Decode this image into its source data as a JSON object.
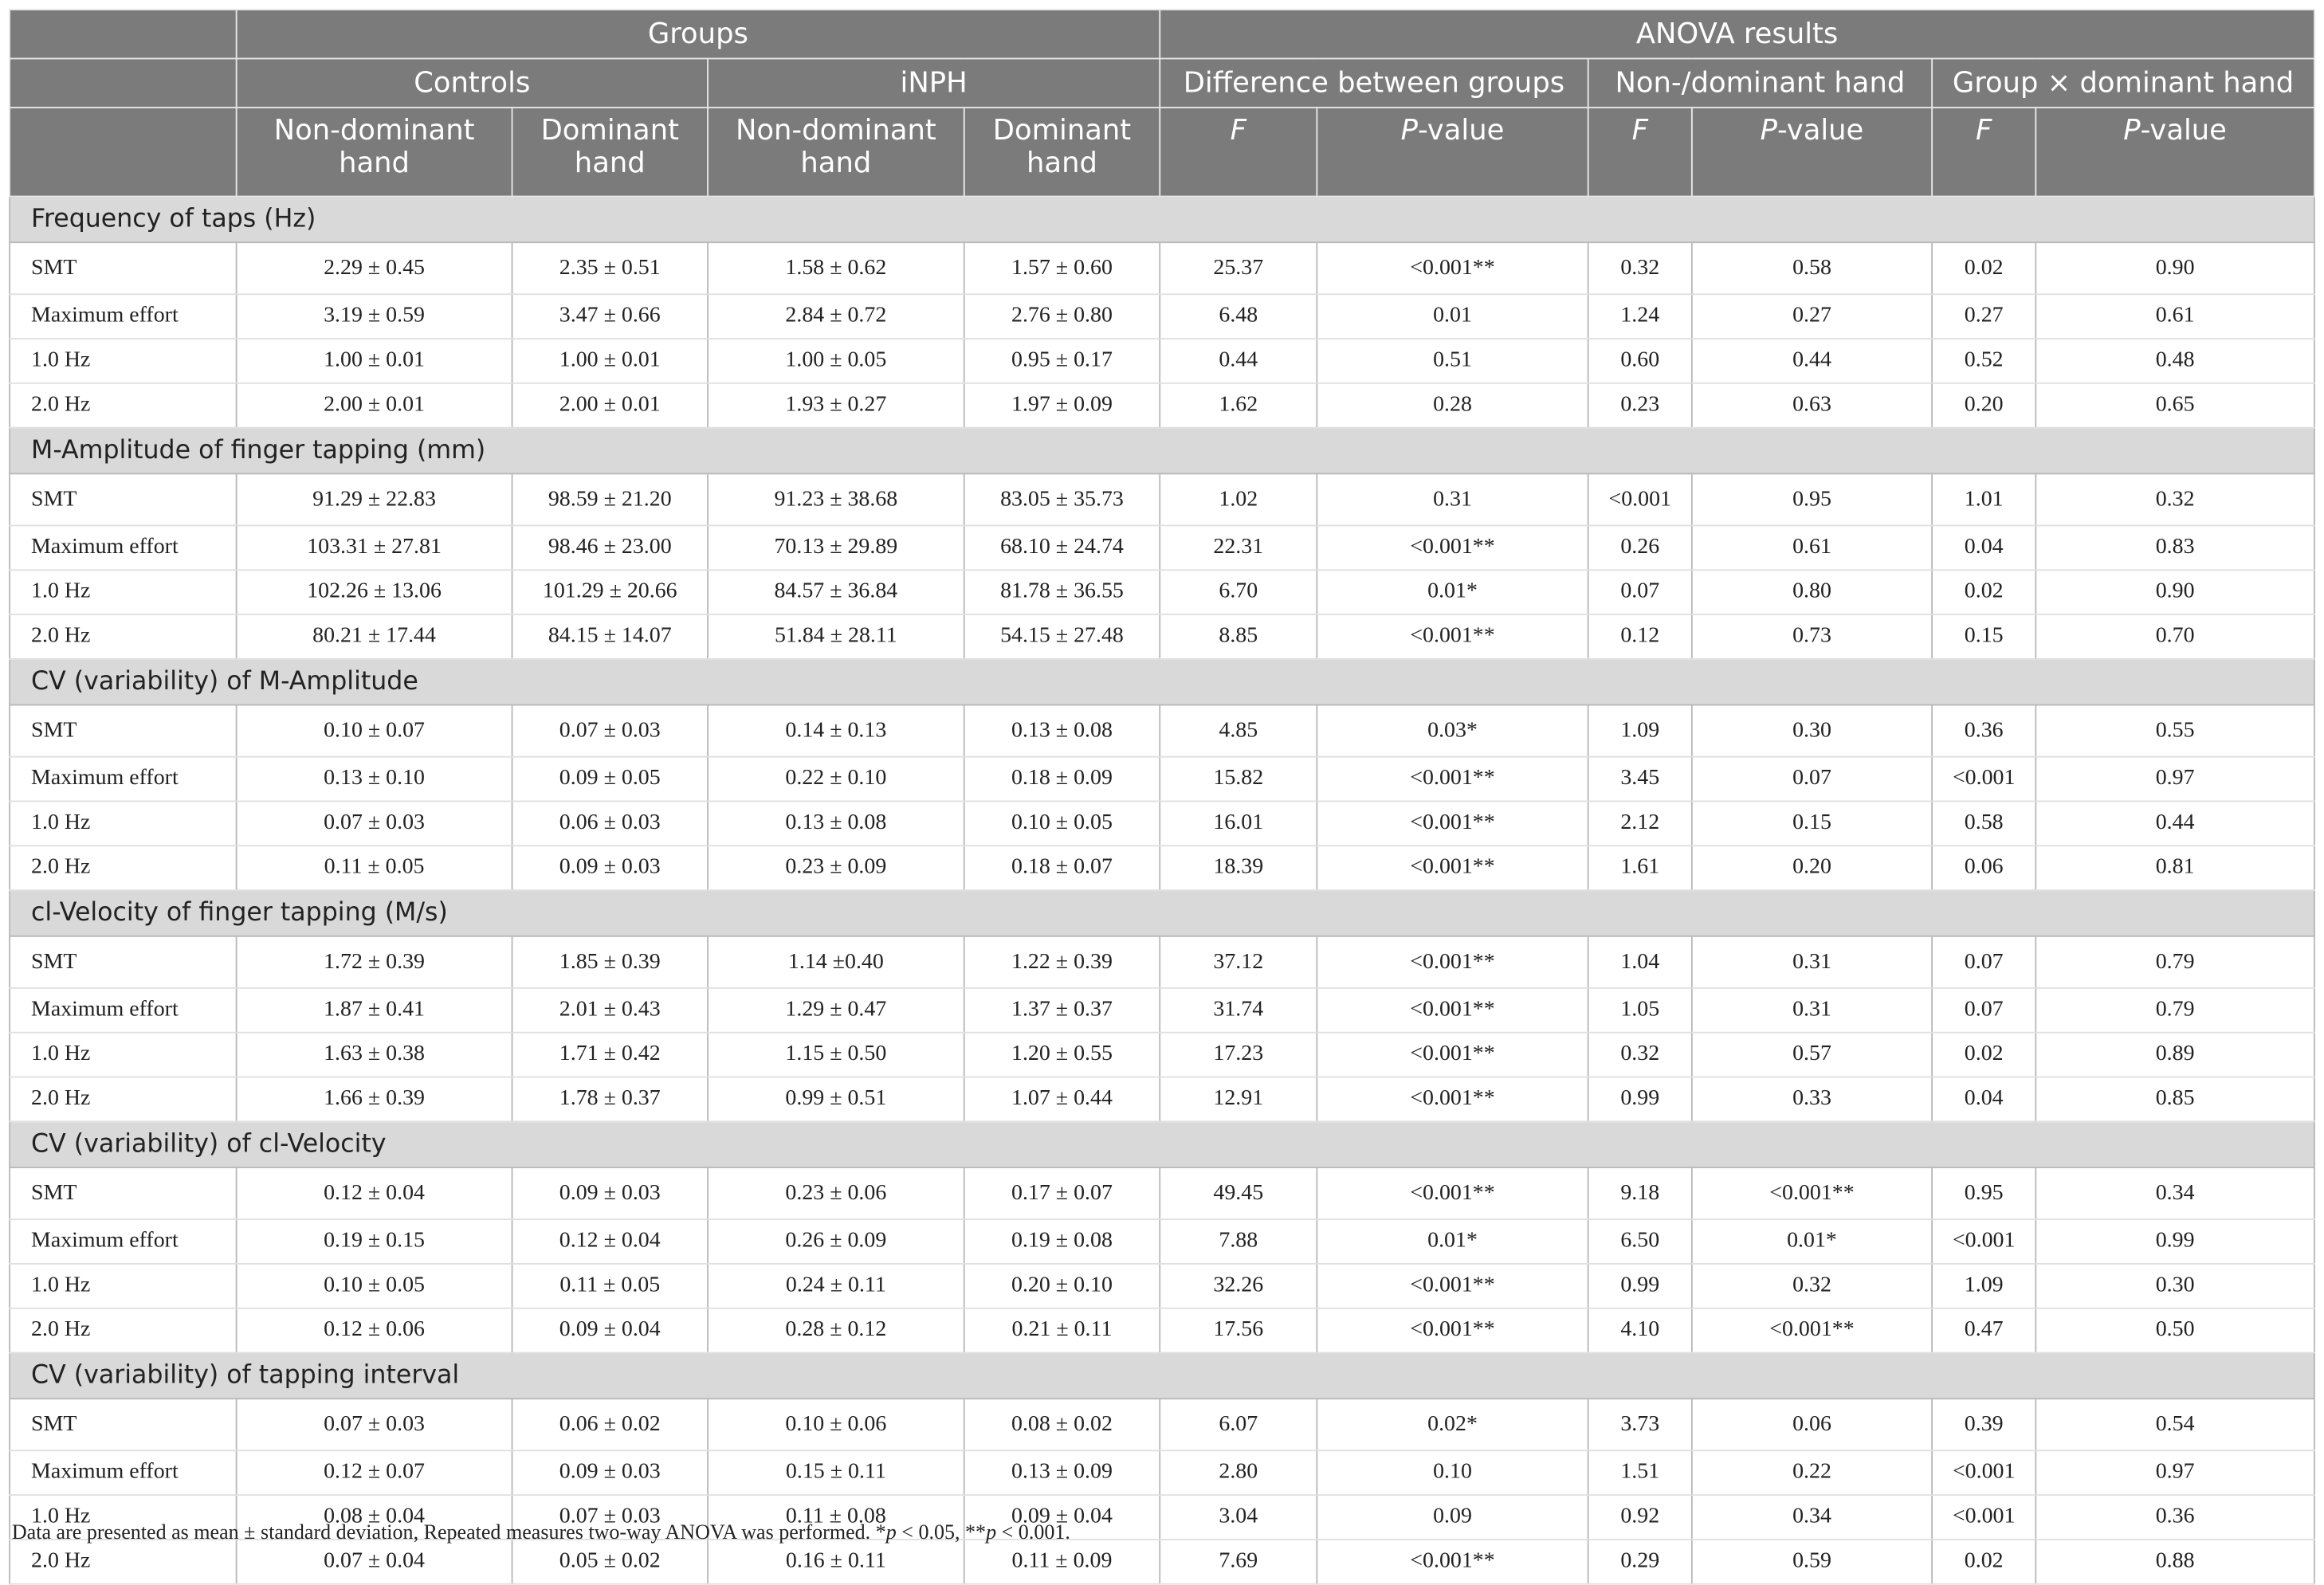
{
  "header": {
    "groups": "Groups",
    "anova": "ANOVA results",
    "controls": "Controls",
    "inph": "iNPH",
    "diff": "Difference between groups",
    "nondom_hand": "Non-/dominant hand",
    "interaction": "Group × dominant hand",
    "col_nondom": "Non-dominant hand",
    "col_dom": "Dominant hand",
    "col_F": "F",
    "col_P_italic": "P",
    "col_P_rest": "-value"
  },
  "sections": [
    {
      "title": "Frequency of taps (Hz)",
      "rows": [
        [
          "SMT",
          "2.29 ± 0.45",
          "2.35 ± 0.51",
          "1.58 ± 0.62",
          "1.57 ± 0.60",
          "25.37",
          "<0.001**",
          "0.32",
          "0.58",
          "0.02",
          "0.90"
        ],
        [
          "Maximum effort",
          "3.19 ± 0.59",
          "3.47 ± 0.66",
          "2.84 ± 0.72",
          "2.76 ± 0.80",
          "6.48",
          "0.01",
          "1.24",
          "0.27",
          "0.27",
          "0.61"
        ],
        [
          "1.0 Hz",
          "1.00 ± 0.01",
          "1.00 ± 0.01",
          "1.00 ± 0.05",
          "0.95 ± 0.17",
          "0.44",
          "0.51",
          "0.60",
          "0.44",
          "0.52",
          "0.48"
        ],
        [
          "2.0 Hz",
          "2.00 ± 0.01",
          "2.00 ± 0.01",
          "1.93 ± 0.27",
          "1.97 ± 0.09",
          "1.62",
          "0.28",
          "0.23",
          "0.63",
          "0.20",
          "0.65"
        ]
      ]
    },
    {
      "title": "M-Amplitude of finger tapping (mm)",
      "rows": [
        [
          "SMT",
          "91.29 ± 22.83",
          "98.59 ± 21.20",
          "91.23 ± 38.68",
          "83.05 ± 35.73",
          "1.02",
          "0.31",
          "<0.001",
          "0.95",
          "1.01",
          "0.32"
        ],
        [
          "Maximum effort",
          "103.31 ± 27.81",
          "98.46 ± 23.00",
          "70.13 ± 29.89",
          "68.10 ± 24.74",
          "22.31",
          "<0.001**",
          "0.26",
          "0.61",
          "0.04",
          "0.83"
        ],
        [
          "1.0 Hz",
          "102.26 ± 13.06",
          "101.29 ± 20.66",
          "84.57 ± 36.84",
          "81.78 ± 36.55",
          "6.70",
          "0.01*",
          "0.07",
          "0.80",
          "0.02",
          "0.90"
        ],
        [
          "2.0 Hz",
          "80.21 ± 17.44",
          "84.15 ± 14.07",
          "51.84 ± 28.11",
          "54.15 ± 27.48",
          "8.85",
          "<0.001**",
          "0.12",
          "0.73",
          "0.15",
          "0.70"
        ]
      ]
    },
    {
      "title": "CV (variability) of M-Amplitude",
      "rows": [
        [
          "SMT",
          "0.10 ± 0.07",
          "0.07 ± 0.03",
          "0.14 ± 0.13",
          "0.13 ± 0.08",
          "4.85",
          "0.03*",
          "1.09",
          "0.30",
          "0.36",
          "0.55"
        ],
        [
          "Maximum effort",
          "0.13 ± 0.10",
          "0.09 ± 0.05",
          "0.22 ± 0.10",
          "0.18 ± 0.09",
          "15.82",
          "<0.001**",
          "3.45",
          "0.07",
          "<0.001",
          "0.97"
        ],
        [
          "1.0 Hz",
          "0.07 ± 0.03",
          "0.06 ± 0.03",
          "0.13 ± 0.08",
          "0.10 ± 0.05",
          "16.01",
          "<0.001**",
          "2.12",
          "0.15",
          "0.58",
          "0.44"
        ],
        [
          "2.0 Hz",
          "0.11 ± 0.05",
          "0.09 ± 0.03",
          "0.23 ± 0.09",
          "0.18 ± 0.07",
          "18.39",
          "<0.001**",
          "1.61",
          "0.20",
          "0.06",
          "0.81"
        ]
      ]
    },
    {
      "title": "cl-Velocity of finger tapping (M/s)",
      "rows": [
        [
          "SMT",
          "1.72 ± 0.39",
          "1.85 ± 0.39",
          "1.14 ±0.40",
          "1.22 ± 0.39",
          "37.12",
          "<0.001**",
          "1.04",
          "0.31",
          "0.07",
          "0.79"
        ],
        [
          "Maximum effort",
          "1.87 ± 0.41",
          "2.01 ± 0.43",
          "1.29 ± 0.47",
          "1.37 ± 0.37",
          "31.74",
          "<0.001**",
          "1.05",
          "0.31",
          "0.07",
          "0.79"
        ],
        [
          "1.0 Hz",
          "1.63 ± 0.38",
          "1.71 ± 0.42",
          "1.15 ± 0.50",
          "1.20 ± 0.55",
          "17.23",
          "<0.001**",
          "0.32",
          "0.57",
          "0.02",
          "0.89"
        ],
        [
          "2.0 Hz",
          "1.66 ± 0.39",
          "1.78 ± 0.37",
          "0.99 ± 0.51",
          "1.07 ± 0.44",
          "12.91",
          "<0.001**",
          "0.99",
          "0.33",
          "0.04",
          "0.85"
        ]
      ]
    },
    {
      "title": "CV (variability) of cl-Velocity",
      "rows": [
        [
          "SMT",
          "0.12 ± 0.04",
          "0.09 ± 0.03",
          "0.23 ± 0.06",
          "0.17 ± 0.07",
          "49.45",
          "<0.001**",
          "9.18",
          "<0.001**",
          "0.95",
          "0.34"
        ],
        [
          "Maximum effort",
          "0.19 ± 0.15",
          "0.12 ± 0.04",
          "0.26 ± 0.09",
          "0.19 ± 0.08",
          "7.88",
          "0.01*",
          "6.50",
          "0.01*",
          "<0.001",
          "0.99"
        ],
        [
          "1.0 Hz",
          "0.10 ± 0.05",
          "0.11 ± 0.05",
          "0.24 ± 0.11",
          "0.20 ± 0.10",
          "32.26",
          "<0.001**",
          "0.99",
          "0.32",
          "1.09",
          "0.30"
        ],
        [
          "2.0 Hz",
          "0.12 ± 0.06",
          "0.09 ± 0.04",
          "0.28 ± 0.12",
          "0.21 ± 0.11",
          "17.56",
          "<0.001**",
          "4.10",
          "<0.001**",
          "0.47",
          "0.50"
        ]
      ]
    },
    {
      "title": "CV (variability) of tapping interval",
      "rows": [
        [
          "SMT",
          "0.07 ± 0.03",
          "0.06 ± 0.02",
          "0.10 ± 0.06",
          "0.08 ± 0.02",
          "6.07",
          "0.02*",
          "3.73",
          "0.06",
          "0.39",
          "0.54"
        ],
        [
          "Maximum effort",
          "0.12 ± 0.07",
          "0.09 ± 0.03",
          "0.15 ± 0.11",
          "0.13 ± 0.09",
          "2.80",
          "0.10",
          "1.51",
          "0.22",
          "<0.001",
          "0.97"
        ],
        [
          "1.0 Hz",
          "0.08 ± 0.04",
          "0.07 ± 0.03",
          "0.11 ± 0.08",
          "0.09 ± 0.04",
          "3.04",
          "0.09",
          "0.92",
          "0.34",
          "<0.001",
          "0.36"
        ],
        [
          "2.0 Hz",
          "0.07 ± 0.04",
          "0.05 ± 0.02",
          "0.16 ± 0.11",
          "0.11 ± 0.09",
          "7.69",
          "<0.001**",
          "0.29",
          "0.59",
          "0.02",
          "0.88"
        ]
      ]
    }
  ],
  "footnote": {
    "text1": "Data are presented as mean ± standard deviation, Repeated measures two-way ANOVA was performed. *",
    "p1": "p",
    "text2": " < 0.05, **",
    "p2": "p",
    "text3": " < 0.001."
  }
}
